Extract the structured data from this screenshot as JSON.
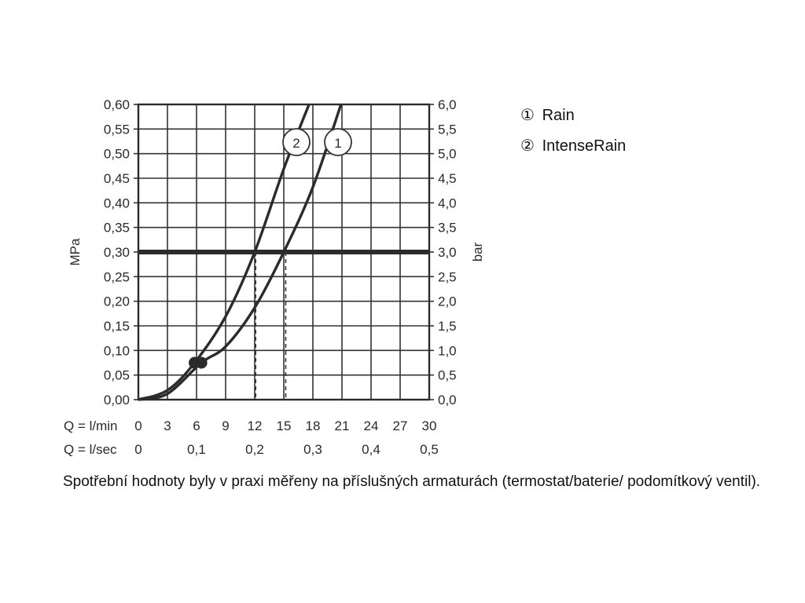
{
  "chart_data": {
    "type": "line",
    "ylabel_left": "MPa",
    "ylabel_right": "bar",
    "ylim": [
      0,
      0.6
    ],
    "xlim": [
      0,
      30
    ],
    "y_ticks_left": [
      "0,00",
      "0,05",
      "0,10",
      "0,15",
      "0,20",
      "0,25",
      "0,30",
      "0,35",
      "0,40",
      "0,45",
      "0,50",
      "0,55",
      "0,60"
    ],
    "y_ticks_right": [
      "0,0",
      "0,5",
      "1,0",
      "1,5",
      "2,0",
      "2,5",
      "3,0",
      "3,5",
      "4,0",
      "4,5",
      "5,0",
      "5,5",
      "6,0"
    ],
    "x_rows": [
      {
        "label": "Q = l/min",
        "ticks": [
          "0",
          "3",
          "6",
          "9",
          "12",
          "15",
          "18",
          "21",
          "24",
          "27",
          "30"
        ],
        "values": [
          0,
          3,
          6,
          9,
          12,
          15,
          18,
          21,
          24,
          27,
          30
        ]
      },
      {
        "label": "Q = l/sec",
        "ticks": [
          "0",
          "0,1",
          "0,2",
          "0,3",
          "0,4",
          "0,5"
        ],
        "values": [
          0,
          6,
          12,
          18,
          24,
          30
        ]
      }
    ],
    "reference_pressure": 0.3,
    "series": [
      {
        "name": "Rain",
        "marker": "1",
        "x": [
          0,
          3,
          6.5,
          9,
          12,
          15,
          18,
          20.9
        ],
        "y": [
          0,
          0.012,
          0.075,
          0.108,
          0.187,
          0.3,
          0.432,
          0.6
        ],
        "dot": [
          6.5,
          0.075
        ],
        "crossing_x": 15.2
      },
      {
        "name": "IntenseRain",
        "marker": "2",
        "x": [
          0,
          3,
          5.8,
          9,
          12,
          15,
          17.6
        ],
        "y": [
          0,
          0.019,
          0.075,
          0.169,
          0.3,
          0.469,
          0.6
        ],
        "dot": [
          5.8,
          0.075
        ],
        "crossing_x": 12.1
      }
    ],
    "grid": true
  },
  "legend": [
    {
      "symbol": "①",
      "label": "Rain"
    },
    {
      "symbol": "②",
      "label": "IntenseRain"
    }
  ],
  "footnote": "Spotřební hodnoty byly v praxi měřeny na příslušných armaturách (termostat/baterie/ podomítkový ventil)."
}
